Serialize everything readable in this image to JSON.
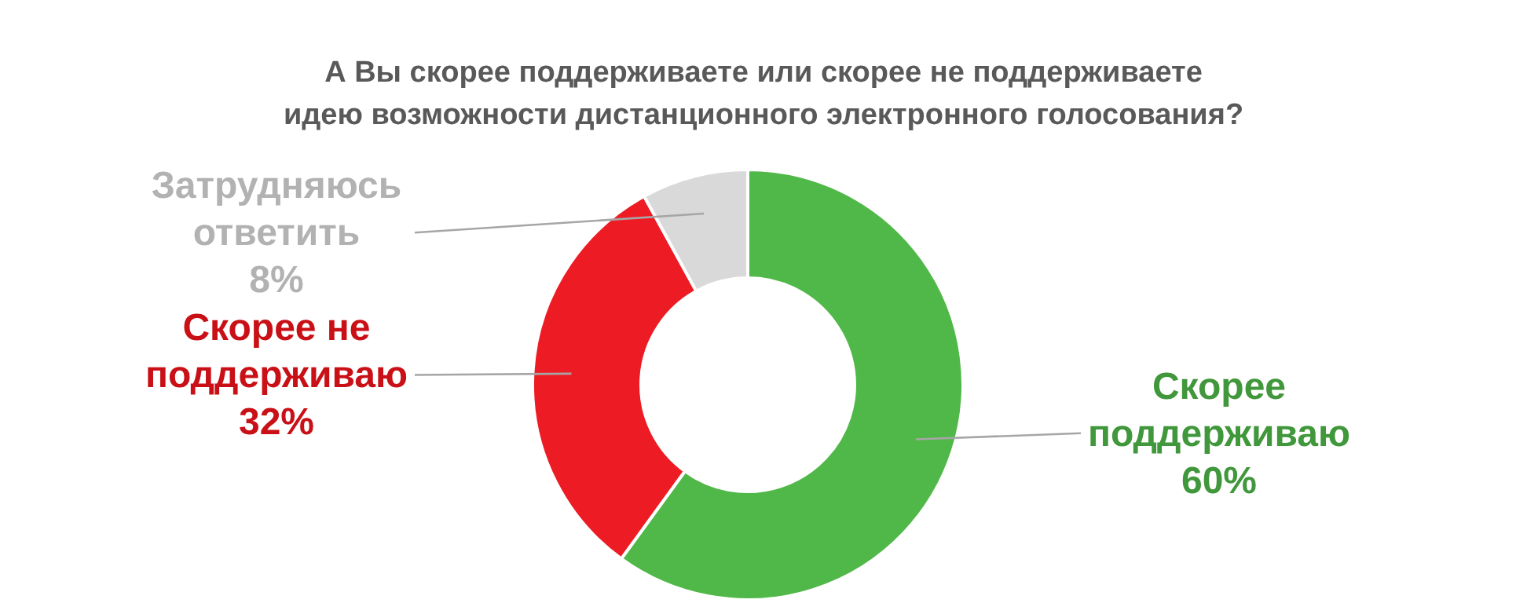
{
  "chart_data": {
    "type": "donut",
    "title": "А Вы скорее поддерживаете или скорее не поддерживаете идею возможности дистанционного электронного голосования?",
    "categories": [
      "Скорее поддерживаю",
      "Скорее не поддерживаю",
      "Затрудняюсь ответить"
    ],
    "values": [
      60,
      32,
      8
    ],
    "colors": [
      "#50b848",
      "#ed1c24",
      "#d9d9d9"
    ],
    "value_labels": [
      "60%",
      "32%",
      "8%"
    ]
  }
}
